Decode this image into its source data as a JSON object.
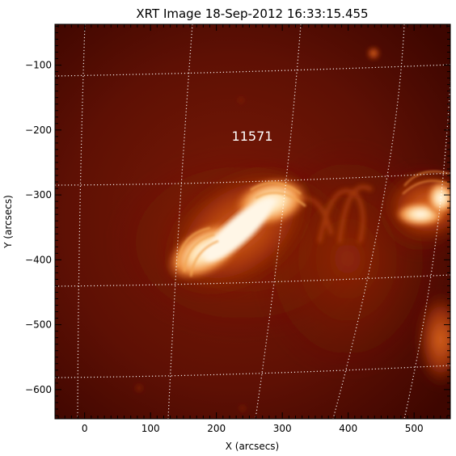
{
  "figure": {
    "title": "XRT Image 18-Sep-2012 16:33:15.455",
    "xlabel": "X (arcsecs)",
    "ylabel": "Y (arcsecs)",
    "annotation": "11571"
  },
  "axes": {
    "x_ticks": [
      {
        "value": 0,
        "label": "0"
      },
      {
        "value": 100,
        "label": "100"
      },
      {
        "value": 200,
        "label": "200"
      },
      {
        "value": 300,
        "label": "300"
      },
      {
        "value": 400,
        "label": "400"
      },
      {
        "value": 500,
        "label": "500"
      }
    ],
    "y_ticks": [
      {
        "value": -100,
        "label": "−100"
      },
      {
        "value": -200,
        "label": "−200"
      },
      {
        "value": -300,
        "label": "−300"
      },
      {
        "value": -400,
        "label": "−400"
      },
      {
        "value": -500,
        "label": "−500"
      },
      {
        "value": -600,
        "label": "−600"
      }
    ],
    "xlim": [
      -45,
      555
    ],
    "ylim": [
      -645,
      -37
    ]
  },
  "colors": {
    "background_dark": "#4a0800",
    "background": "#6a1505",
    "emission_mid": "#c04a10",
    "emission_bright": "#f0a050",
    "emission_core": "#fff4e0",
    "grid": "#ffffff"
  }
}
